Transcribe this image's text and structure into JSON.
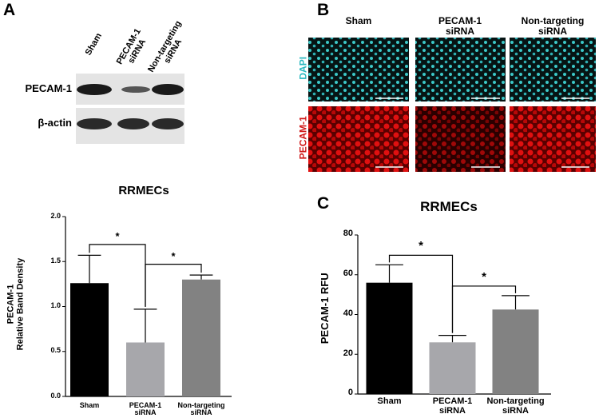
{
  "figure": {
    "panels": [
      "A",
      "B",
      "C"
    ],
    "blot_columns": [
      "Sham",
      "PECAM-1\nsiRNA",
      "Non-targeting\nsiRNA"
    ],
    "blot_rows": [
      "PECAM-1",
      "β-actin"
    ],
    "image_columns": [
      "Sham",
      "PECAM-1\nsiRNA",
      "Non-targeting\nsiRNA"
    ],
    "image_rows": [
      "DAPI",
      "PECAM-1"
    ]
  },
  "chart_data": [
    {
      "type": "bar",
      "title": "RRMECs",
      "y_label": "PECAM-1\nRelative Band Density",
      "categories": [
        "Sham",
        "PECAM-1\nsiRNA",
        "Non-targeting\nsiRNA"
      ],
      "values": [
        1.26,
        0.6,
        1.3
      ],
      "errors": [
        0.31,
        0.37,
        0.05
      ],
      "colors": [
        "#000000",
        "#a7a7ab",
        "#828282"
      ],
      "ylim": [
        0,
        2.0
      ],
      "yticks": [
        {
          "value": 0,
          "label": "0.0"
        },
        {
          "value": 0.5,
          "label": "0.5"
        },
        {
          "value": 1,
          "label": "1.0"
        },
        {
          "value": 1.5,
          "label": "1.5"
        },
        {
          "value": 2,
          "label": "2.0"
        }
      ],
      "annotations": [
        "*",
        "*"
      ]
    },
    {
      "type": "bar",
      "title": "RRMECs",
      "y_label": "PECAM-1 RFU",
      "categories": [
        "Sham",
        "PECAM-1\nsiRNA",
        "Non-targeting\nsiRNA"
      ],
      "values": [
        56,
        26,
        42.5
      ],
      "errors": [
        9,
        3.5,
        7
      ],
      "colors": [
        "#000000",
        "#a7a7ab",
        "#828282"
      ],
      "ylim": [
        0,
        80
      ],
      "yticks": [
        0,
        20,
        40,
        60,
        80
      ],
      "annotations": [
        "*",
        "*"
      ]
    }
  ]
}
